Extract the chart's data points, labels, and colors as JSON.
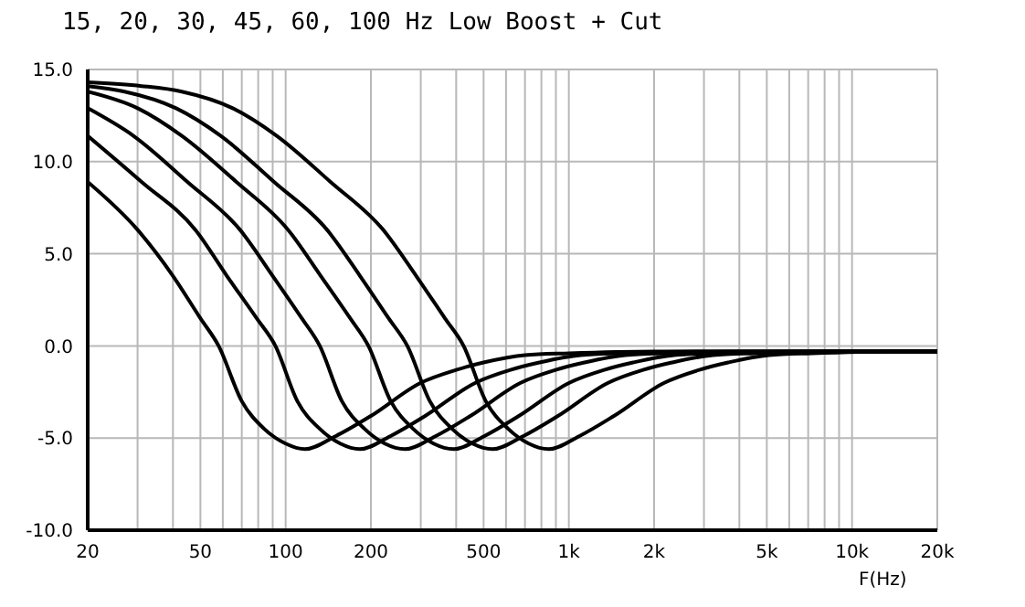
{
  "chart_data": {
    "type": "line",
    "title": "15, 20, 30, 45, 60, 100 Hz Low Boost + Cut",
    "xlabel": "F(Hz)",
    "log": "x",
    "grid": true,
    "line_style": "solid",
    "xlim": [
      20,
      20000
    ],
    "xticks": [
      20,
      {
        "value": 30,
        "label": null
      },
      {
        "value": 40,
        "label": null
      },
      50,
      {
        "value": 60,
        "label": null
      },
      {
        "value": 70,
        "label": null
      },
      {
        "value": 80,
        "label": null
      },
      {
        "value": 90,
        "label": null
      },
      100,
      200,
      {
        "value": 300,
        "label": null
      },
      {
        "value": 400,
        "label": null
      },
      500,
      {
        "value": 600,
        "label": null
      },
      {
        "value": 700,
        "label": null
      },
      {
        "value": 800,
        "label": null
      },
      {
        "value": 900,
        "label": null
      },
      {
        "value": 1000,
        "label": "1k"
      },
      {
        "value": 2000,
        "label": "2k"
      },
      {
        "value": 3000,
        "label": null
      },
      {
        "value": 4000,
        "label": null
      },
      {
        "value": 5000,
        "label": "5k"
      },
      {
        "value": 6000,
        "label": null
      },
      {
        "value": 7000,
        "label": null
      },
      {
        "value": 8000,
        "label": null
      },
      {
        "value": 9000,
        "label": null
      },
      {
        "value": 10000,
        "label": "10k"
      },
      {
        "value": 20000,
        "label": "20k"
      }
    ],
    "ylim": [
      -10,
      15
    ],
    "yticks": [
      {
        "value": -10,
        "label": "-10.0"
      },
      {
        "value": -5,
        "label": "-5.0"
      },
      {
        "value": 0,
        "label": "0.0"
      },
      {
        "value": 5,
        "label": "5.0"
      },
      {
        "value": 10,
        "label": "10.0"
      },
      {
        "value": 15,
        "label": "15.0"
      }
    ],
    "series": [
      {
        "color": "#000000",
        "x": [
          20,
          30,
          40,
          50,
          58,
          70,
          84,
          100,
          117,
          150,
          200,
          300,
          400,
          500,
          700,
          1000,
          2000,
          20000
        ],
        "values": [
          8.9,
          6.3,
          3.8,
          1.5,
          0,
          -3.0,
          -4.5,
          -5.3,
          -5.6,
          -4.9,
          -3.8,
          -2.0,
          -1.3,
          -0.9,
          -0.5,
          -0.4,
          -0.3,
          -0.3
        ]
      },
      {
        "color": "#000000",
        "x": [
          20,
          31,
          48,
          62,
          79,
          92,
          110,
          132,
          156,
          183,
          234,
          311,
          468,
          622,
          787,
          1100,
          1560,
          3100,
          20000
        ],
        "values": [
          11.4,
          8.9,
          6.3,
          3.8,
          1.5,
          0,
          -3.0,
          -4.5,
          -5.3,
          -5.6,
          -4.9,
          -3.8,
          -2.0,
          -1.3,
          -0.9,
          -0.5,
          -0.4,
          -0.3,
          -0.3
        ]
      },
      {
        "color": "#000000",
        "x": [
          20,
          29,
          45,
          69,
          90,
          114,
          132,
          158,
          190,
          224,
          264,
          338,
          449,
          676,
          898,
          1135,
          1584,
          2244,
          4488,
          20000
        ],
        "values": [
          12.9,
          11.4,
          8.9,
          6.3,
          3.8,
          1.5,
          0,
          -3.0,
          -4.5,
          -5.3,
          -5.6,
          -4.9,
          -3.8,
          -2.0,
          -1.3,
          -0.9,
          -0.5,
          -0.4,
          -0.3,
          -0.3
        ]
      },
      {
        "color": "#000000",
        "x": [
          20,
          30,
          43,
          67,
          102,
          133,
          169,
          196,
          235,
          282,
          333,
          392,
          502,
          666,
          1004,
          1333,
          1686,
          2352,
          3332,
          6664,
          20000
        ],
        "values": [
          13.8,
          12.9,
          11.4,
          8.9,
          6.3,
          3.8,
          1.5,
          0,
          -3.0,
          -4.5,
          -5.3,
          -5.6,
          -4.9,
          -3.8,
          -2.0,
          -1.3,
          -0.9,
          -0.5,
          -0.4,
          -0.3,
          -0.3
        ]
      },
      {
        "color": "#000000",
        "x": [
          20,
          27,
          41,
          59,
          91,
          140,
          183,
          231,
          269,
          323,
          387,
          457,
          538,
          689,
          915,
          1377,
          1829,
          2313,
          3228,
          4573,
          9146,
          20000
        ],
        "values": [
          14.1,
          13.8,
          12.9,
          11.4,
          8.9,
          6.3,
          3.8,
          1.5,
          0,
          -3.0,
          -4.5,
          -5.3,
          -5.6,
          -4.9,
          -3.8,
          -2.0,
          -1.3,
          -0.9,
          -0.5,
          -0.4,
          -0.3,
          -0.3
        ]
      },
      {
        "color": "#000000",
        "x": [
          20,
          31,
          43,
          65,
          93,
          144,
          221,
          289,
          365,
          425,
          509,
          611,
          722,
          849,
          1087,
          1443,
          2173,
          2887,
          3651,
          5094,
          7217,
          14433,
          20000
        ],
        "values": [
          14.3,
          14.1,
          13.8,
          12.9,
          11.4,
          8.9,
          6.3,
          3.8,
          1.5,
          0,
          -3.0,
          -4.5,
          -5.3,
          -5.6,
          -4.9,
          -3.8,
          -2.0,
          -1.3,
          -0.9,
          -0.5,
          -0.4,
          -0.3,
          -0.3
        ]
      }
    ]
  }
}
